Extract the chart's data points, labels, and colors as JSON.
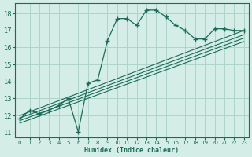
{
  "xlabel": "Humidex (Indice chaleur)",
  "ylabel": "",
  "bg_color": "#d4ede6",
  "grid_color": "#aed4c8",
  "line_color": "#1a6b5a",
  "xlim": [
    -0.5,
    23.5
  ],
  "ylim": [
    10.7,
    18.6
  ],
  "xticks": [
    0,
    1,
    2,
    3,
    4,
    5,
    6,
    7,
    8,
    9,
    10,
    11,
    12,
    13,
    14,
    15,
    16,
    17,
    18,
    19,
    20,
    21,
    22,
    23
  ],
  "yticks": [
    11,
    12,
    13,
    14,
    15,
    16,
    17,
    18
  ],
  "main_line_x": [
    0,
    1,
    2,
    3,
    4,
    5,
    5,
    6,
    7,
    8,
    9,
    10,
    11,
    12,
    13,
    14,
    15,
    16,
    17,
    18,
    19,
    20,
    21,
    22,
    23
  ],
  "main_line_y": [
    11.8,
    12.3,
    12.1,
    12.3,
    12.6,
    13.0,
    12.95,
    11.05,
    13.9,
    14.1,
    16.4,
    17.7,
    17.7,
    17.3,
    18.2,
    18.2,
    17.8,
    17.3,
    17.0,
    16.5,
    16.5,
    17.1,
    17.1,
    17.0,
    17.0
  ],
  "straight_lines": [
    {
      "x": [
        0,
        23
      ],
      "y": [
        12.0,
        17.0
      ]
    },
    {
      "x": [
        0,
        23
      ],
      "y": [
        11.85,
        16.75
      ]
    },
    {
      "x": [
        0,
        23
      ],
      "y": [
        11.7,
        16.55
      ]
    },
    {
      "x": [
        0,
        23
      ],
      "y": [
        11.55,
        16.35
      ]
    }
  ]
}
